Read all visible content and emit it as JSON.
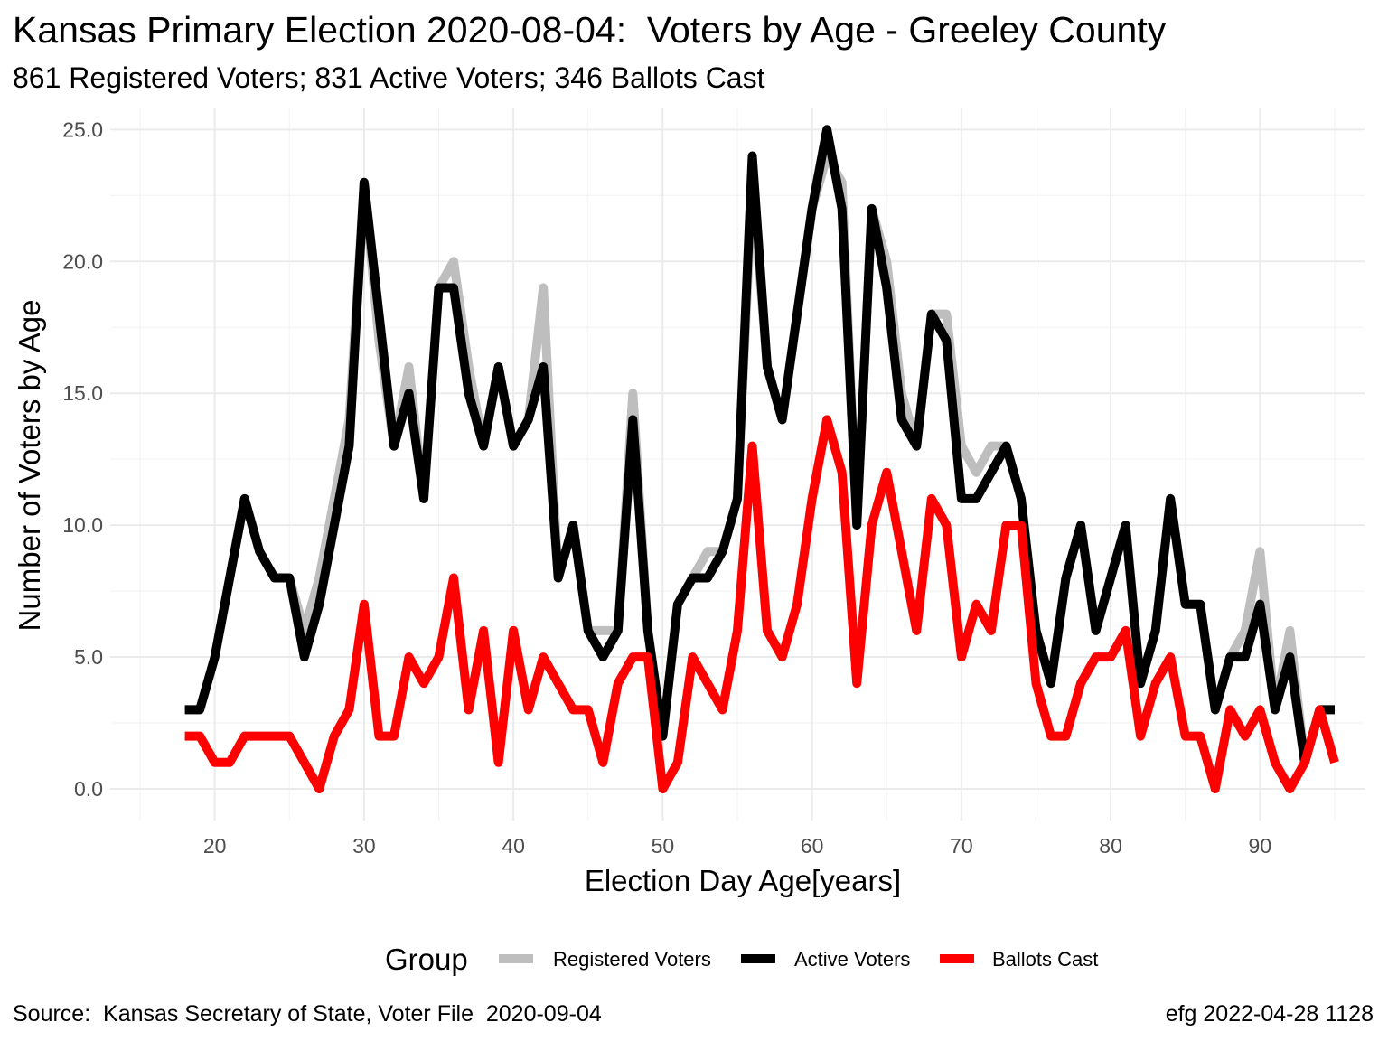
{
  "chart_data": {
    "type": "line",
    "title": "Kansas Primary Election 2020-08-04:  Voters by Age - Greeley County",
    "subtitle": "861 Registered Voters; 831 Active Voters; 346 Ballots Cast",
    "xlabel": "Election Day Age[years]",
    "ylabel": "Number of Voters by Age",
    "xlim": [
      13,
      97
    ],
    "ylim": [
      -1.2,
      25.8
    ],
    "x_ticks": [
      20,
      30,
      40,
      50,
      60,
      70,
      80,
      90
    ],
    "y_ticks": [
      "0.0",
      "5.0",
      "10.0",
      "15.0",
      "20.0",
      "25.0"
    ],
    "y_tick_values": [
      0,
      5,
      10,
      15,
      20,
      25
    ],
    "grid": true,
    "legend_title": "Group",
    "legend_position": "bottom",
    "x": [
      18,
      19,
      20,
      21,
      22,
      23,
      24,
      25,
      26,
      27,
      28,
      29,
      30,
      31,
      32,
      33,
      34,
      35,
      36,
      37,
      38,
      39,
      40,
      41,
      42,
      43,
      44,
      45,
      46,
      47,
      48,
      49,
      50,
      51,
      52,
      53,
      54,
      55,
      56,
      57,
      58,
      59,
      60,
      61,
      62,
      63,
      64,
      65,
      66,
      67,
      68,
      69,
      70,
      71,
      72,
      73,
      74,
      75,
      76,
      77,
      78,
      79,
      80,
      81,
      82,
      83,
      84,
      85,
      86,
      87,
      88,
      89,
      90,
      91,
      92,
      93,
      94,
      95
    ],
    "series": [
      {
        "name": "Registered Voters",
        "color": "#bebebe",
        "values": [
          3,
          3,
          5,
          8,
          11,
          9,
          8,
          8,
          6,
          8,
          11,
          14,
          23,
          17,
          13,
          16,
          11,
          19,
          20,
          16,
          13,
          16,
          13,
          14,
          19,
          8,
          10,
          6,
          6,
          6,
          15,
          6,
          2,
          7,
          8,
          9,
          9,
          11,
          23,
          16,
          14,
          18,
          22,
          24,
          23,
          10,
          22,
          20,
          15,
          13,
          18,
          18,
          13,
          12,
          13,
          13,
          11,
          6,
          4,
          8,
          10,
          6,
          8,
          10,
          4,
          6,
          11,
          7,
          7,
          3,
          5,
          6,
          9,
          3,
          6,
          1,
          3,
          3
        ]
      },
      {
        "name": "Active Voters",
        "color": "#000000",
        "values": [
          3,
          3,
          5,
          8,
          11,
          9,
          8,
          8,
          5,
          7,
          10,
          13,
          23,
          18,
          13,
          15,
          11,
          19,
          19,
          15,
          13,
          16,
          13,
          14,
          16,
          8,
          10,
          6,
          5,
          6,
          14,
          6,
          2,
          7,
          8,
          8,
          9,
          11,
          24,
          16,
          14,
          18,
          22,
          25,
          22,
          10,
          22,
          19,
          14,
          13,
          18,
          17,
          11,
          11,
          12,
          13,
          11,
          6,
          4,
          8,
          10,
          6,
          8,
          10,
          4,
          6,
          11,
          7,
          7,
          3,
          5,
          5,
          7,
          3,
          5,
          1,
          3,
          3
        ]
      },
      {
        "name": "Ballots Cast",
        "color": "#ff0000",
        "values": [
          2,
          2,
          1,
          1,
          2,
          2,
          2,
          2,
          1,
          0,
          2,
          3,
          7,
          2,
          2,
          5,
          4,
          5,
          8,
          3,
          6,
          1,
          6,
          3,
          5,
          4,
          3,
          3,
          1,
          4,
          5,
          5,
          0,
          1,
          5,
          4,
          3,
          6,
          13,
          6,
          5,
          7,
          11,
          14,
          12,
          4,
          10,
          12,
          9,
          6,
          11,
          10,
          5,
          7,
          6,
          10,
          10,
          4,
          2,
          2,
          4,
          5,
          5,
          6,
          2,
          4,
          5,
          2,
          2,
          0,
          3,
          2,
          3,
          1,
          0,
          1,
          3,
          1
        ]
      }
    ],
    "caption_left": "Source:  Kansas Secretary of State, Voter File  2020-09-04",
    "caption_right": "efg 2022-04-28 1128"
  }
}
